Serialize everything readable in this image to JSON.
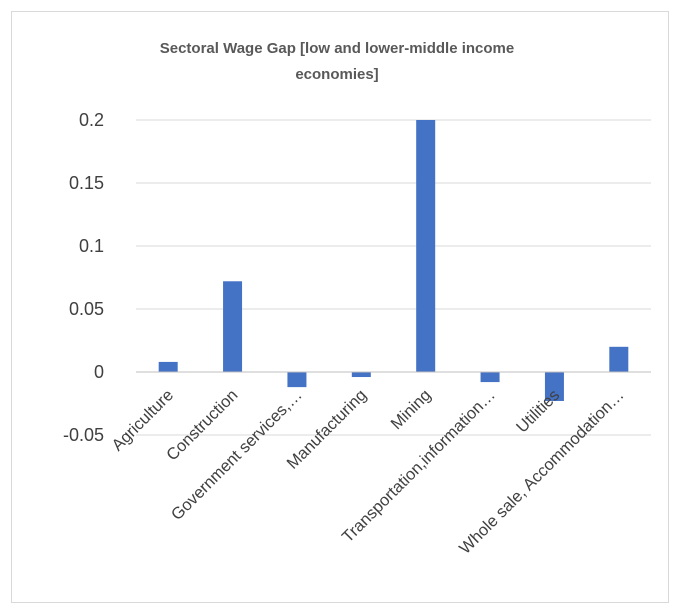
{
  "chart_data": {
    "type": "bar",
    "title": "Sectoral Wage Gap [low and lower-middle income economies]",
    "title_lines": [
      "Sectoral Wage Gap [low and lower-middle income",
      "economies]"
    ],
    "xlabel": "",
    "ylabel": "",
    "categories": [
      "Agriculture",
      "Construction",
      "Government services,…",
      "Manufacturing",
      "Mining",
      "Transportation,information…",
      "Utilities",
      "Whole sale, Accommodation…"
    ],
    "values": [
      0.008,
      0.072,
      -0.012,
      -0.004,
      0.2,
      -0.008,
      -0.023,
      0.02
    ],
    "ylim": [
      -0.05,
      0.2
    ],
    "yticks": [
      -0.05,
      0,
      0.05,
      0.1,
      0.15,
      0.2
    ],
    "ytick_labels": [
      "-0.05",
      "0",
      "0.05",
      "0.1",
      "0.15",
      "0.2"
    ],
    "grid": true,
    "legend": "none",
    "bar_color": "#4472C4"
  }
}
